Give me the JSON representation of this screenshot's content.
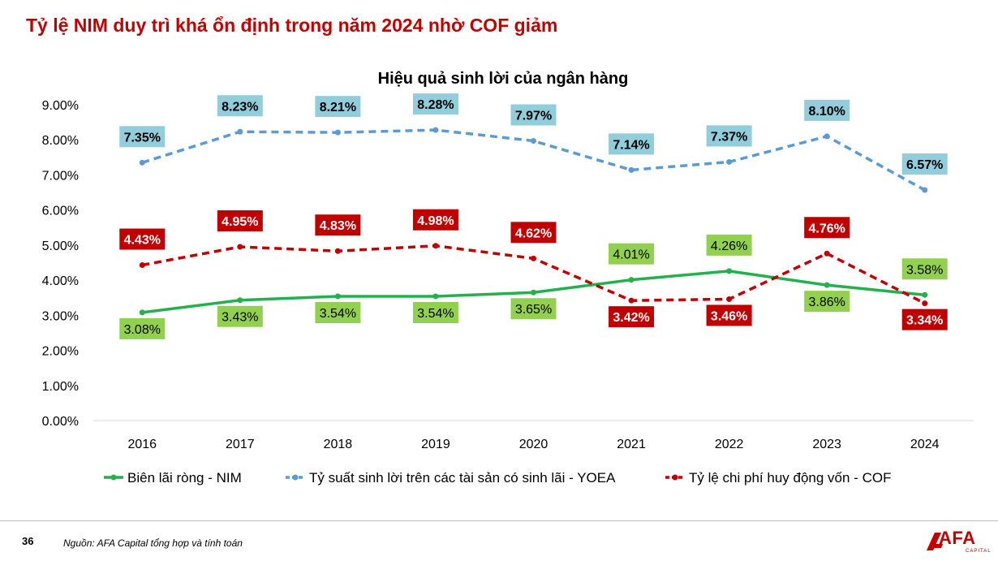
{
  "page": {
    "title": "Tỷ lệ NIM duy trì khá ổn định trong năm 2024 nhờ COF giảm",
    "page_number": "36",
    "source_note": "Nguồn: AFA Capital tổng hợp và tính toán",
    "logo_text": "AFA",
    "logo_subtext": "CAPITAL"
  },
  "chart_data": {
    "type": "line",
    "title": "Hiệu quả sinh lời của ngân hàng",
    "categories": [
      "2016",
      "2017",
      "2018",
      "2019",
      "2020",
      "2021",
      "2022",
      "2023",
      "2024"
    ],
    "ylim": [
      0,
      9
    ],
    "yticks": [
      "0.00%",
      "1.00%",
      "2.00%",
      "3.00%",
      "4.00%",
      "5.00%",
      "6.00%",
      "7.00%",
      "8.00%",
      "9.00%"
    ],
    "grid": false,
    "legend_position": "bottom",
    "series": [
      {
        "name": "Biên lãi ròng - NIM",
        "values": [
          3.08,
          3.43,
          3.54,
          3.54,
          3.65,
          4.01,
          4.26,
          3.86,
          3.58
        ],
        "labels": [
          "3.08%",
          "3.43%",
          "3.54%",
          "3.54%",
          "3.65%",
          "4.01%",
          "4.26%",
          "3.86%",
          "3.58%"
        ],
        "color": "#22b14c",
        "label_bg": "#92d050",
        "label_color": "#000000",
        "label_bold": false,
        "line_style": "solid",
        "label_placement": [
          "below",
          "below",
          "below",
          "below",
          "below",
          "above",
          "above",
          "below",
          "above"
        ]
      },
      {
        "name": "Tỷ suất sinh lời trên các tài sản có sinh lãi - YOEA",
        "values": [
          7.35,
          8.23,
          8.21,
          8.28,
          7.97,
          7.14,
          7.37,
          8.1,
          6.57
        ],
        "labels": [
          "7.35%",
          "8.23%",
          "8.21%",
          "8.28%",
          "7.97%",
          "7.14%",
          "7.37%",
          "8.10%",
          "6.57%"
        ],
        "color": "#5b9bd5",
        "label_bg": "#92cddc",
        "label_color": "#000000",
        "label_bold": true,
        "line_style": "dashed",
        "label_placement": [
          "above",
          "above",
          "above",
          "above",
          "above",
          "above",
          "above",
          "above",
          "above"
        ]
      },
      {
        "name": "Tỷ lệ chi phí huy động vốn - COF",
        "values": [
          4.43,
          4.95,
          4.83,
          4.98,
          4.62,
          3.42,
          3.46,
          4.76,
          3.34
        ],
        "labels": [
          "4.43%",
          "4.95%",
          "4.83%",
          "4.98%",
          "4.62%",
          "3.42%",
          "3.46%",
          "4.76%",
          "3.34%"
        ],
        "color": "#c00000",
        "label_bg": "#c00000",
        "label_color": "#ffffff",
        "label_bold": true,
        "line_style": "dashed",
        "label_placement": [
          "above",
          "above",
          "above",
          "above",
          "above",
          "below",
          "below",
          "above",
          "below"
        ]
      }
    ]
  }
}
